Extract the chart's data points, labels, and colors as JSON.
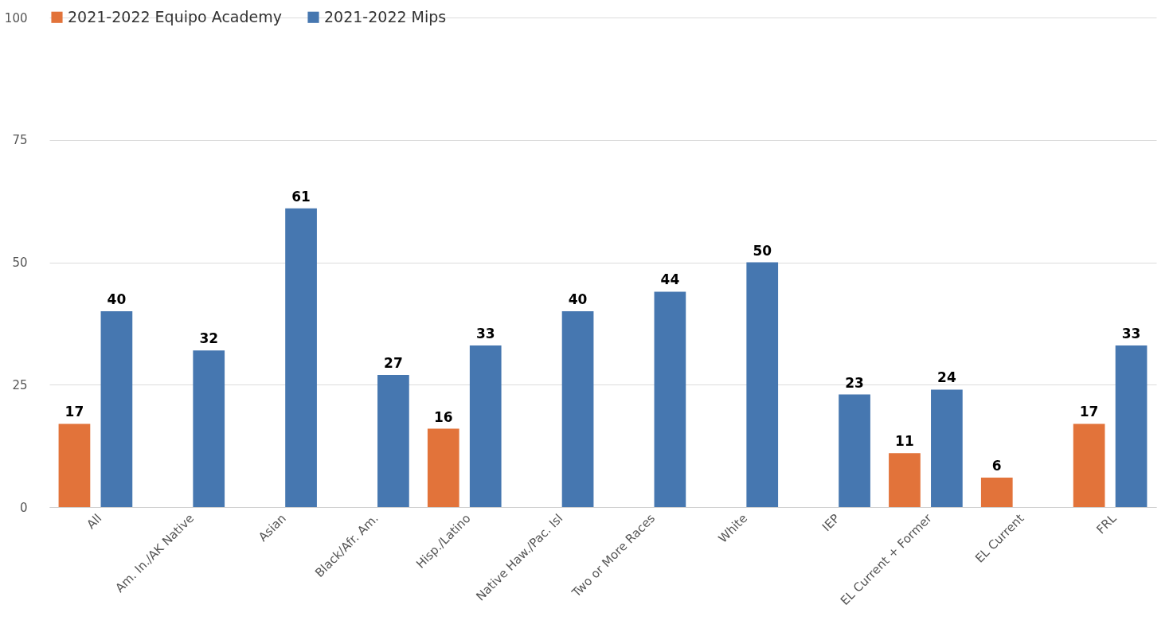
{
  "chart_data": {
    "type": "bar",
    "categories": [
      "All",
      "Am. In./AK Native",
      "Asian",
      "Black/Afr. Am.",
      "Hisp./Latino",
      "Native Haw./Pac. Isl",
      "Two or More Races",
      "White",
      "IEP",
      "EL Current + Former",
      "EL Current",
      "FRL"
    ],
    "series": [
      {
        "name": "2021-2022 Equipo Academy",
        "color": "#e2733a",
        "values": [
          17,
          null,
          null,
          null,
          16,
          null,
          null,
          null,
          null,
          11,
          6,
          17
        ]
      },
      {
        "name": "2021-2022 Mips",
        "color": "#4677b0",
        "values": [
          40,
          32,
          61,
          27,
          33,
          40,
          44,
          50,
          23,
          24,
          null,
          33
        ]
      }
    ],
    "ylim": [
      0,
      100
    ],
    "yticks": [
      0,
      25,
      50,
      75,
      100
    ],
    "grid": "y",
    "legend": "top",
    "data_labels": true
  }
}
